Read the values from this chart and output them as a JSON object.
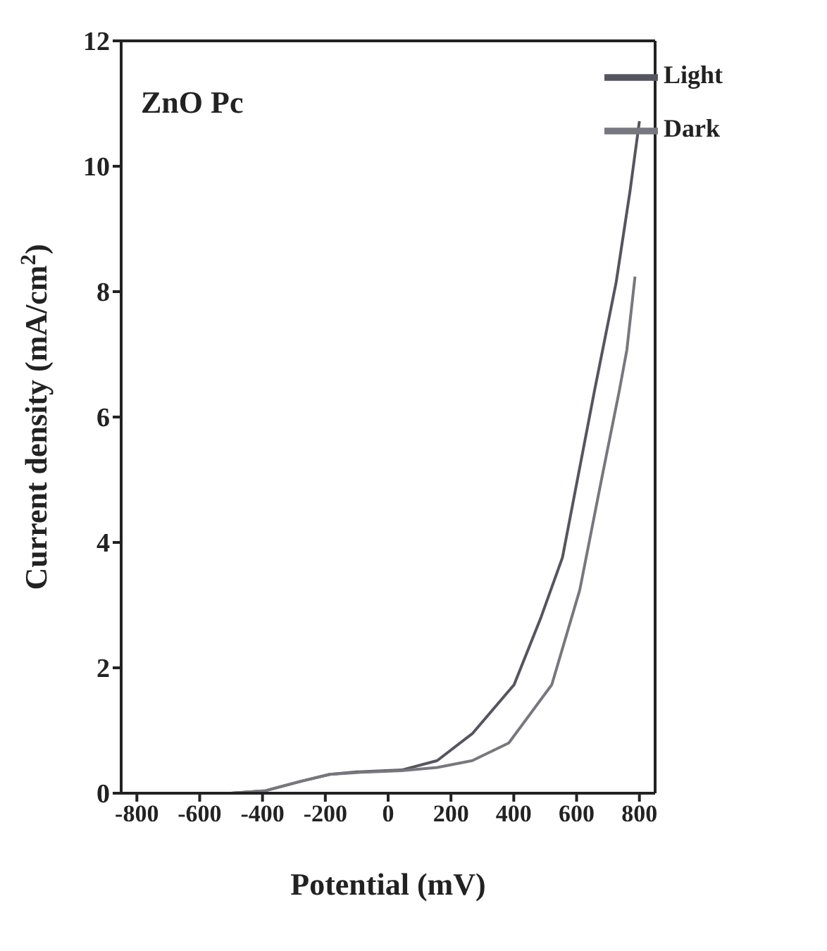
{
  "chart_data": {
    "type": "line",
    "xlabel": "Potential (mV)",
    "ylabel": "Current density (mA/cm$^{2}$)",
    "annotations": [
      "ZnO Pc"
    ],
    "xlim": [
      -850,
      850
    ],
    "xticks": [
      -800,
      -600,
      -400,
      -200,
      0,
      200,
      400,
      600,
      800
    ],
    "ylim": [
      0,
      12
    ],
    "yticks": [
      0,
      2,
      4,
      6,
      8,
      10,
      12
    ],
    "legend": "top right",
    "marker": "none",
    "line_style": "solid",
    "grid": false,
    "series": [
      {
        "name": "Light",
        "color": "#555560",
        "x": [
          -850,
          -600,
          -500,
          -390,
          -278,
          -186,
          -100,
          43,
          156,
          268,
          401,
          487,
          555,
          657,
          726,
          770,
          800
        ],
        "values": [
          0,
          0,
          0,
          0.04,
          0.19,
          0.3,
          0.34,
          0.37,
          0.52,
          0.95,
          1.73,
          2.81,
          3.76,
          6.42,
          8.15,
          9.6,
          10.72
        ]
      },
      {
        "name": "Dark",
        "color": "#77777f",
        "x": [
          -850,
          -600,
          -500,
          -390,
          -278,
          -186,
          -100,
          43,
          156,
          268,
          384,
          521,
          610,
          678,
          736,
          760,
          786
        ],
        "values": [
          0,
          0,
          0,
          0.04,
          0.19,
          0.3,
          0.33,
          0.36,
          0.41,
          0.52,
          0.8,
          1.73,
          3.24,
          4.97,
          6.42,
          7.07,
          8.24
        ]
      }
    ]
  }
}
